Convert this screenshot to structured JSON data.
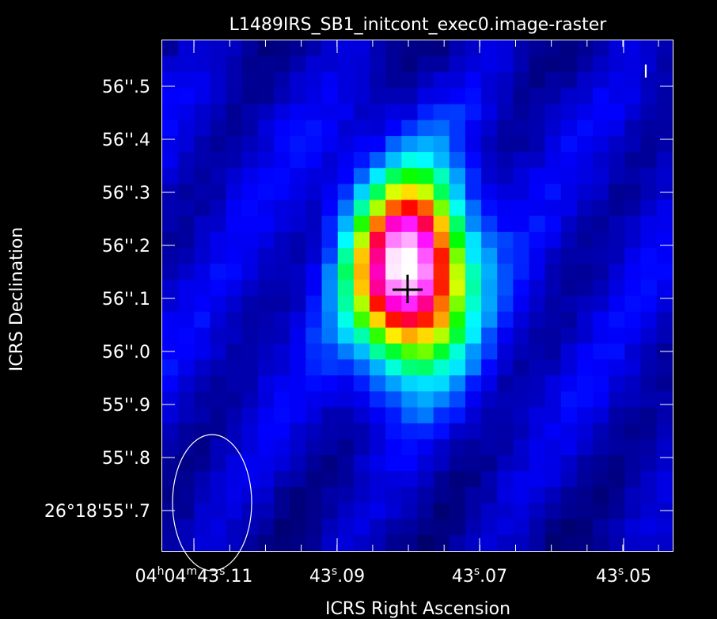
{
  "title": "L1489IRS_SB1_initcont_exec0.image-raster",
  "xlabel": "ICRS Right Ascension",
  "ylabel": "ICRS Declination",
  "stokes_label": "I",
  "x_ticks": [
    {
      "label": "04h04m43s.11",
      "parts": [
        "04",
        "h",
        "04",
        "m",
        "43",
        "s",
        ".11"
      ]
    },
    {
      "label": "43s.09",
      "parts": [
        "43",
        "s",
        ".09"
      ]
    },
    {
      "label": "43s.07",
      "parts": [
        "43",
        "s",
        ".07"
      ]
    },
    {
      "label": "43s.05",
      "parts": [
        "43",
        "s",
        ".05"
      ]
    }
  ],
  "y_ticks": [
    "56''.5",
    "56''.4",
    "56''.3",
    "56''.2",
    "56''.1",
    "56''.0",
    "55''.9",
    "55''.8",
    "26°18'55''.7"
  ],
  "colormap": [
    "#000055",
    "#0000ff",
    "#00ffff",
    "#00ff00",
    "#ffff00",
    "#ff8000",
    "#ff0000",
    "#ff00ff",
    "#ffffff"
  ],
  "source": {
    "peak_col": 15,
    "peak_row": 14,
    "sigma_cols": 2.6,
    "sigma_rows": 4.2
  },
  "marker": "plus",
  "beam": "ellipse"
}
